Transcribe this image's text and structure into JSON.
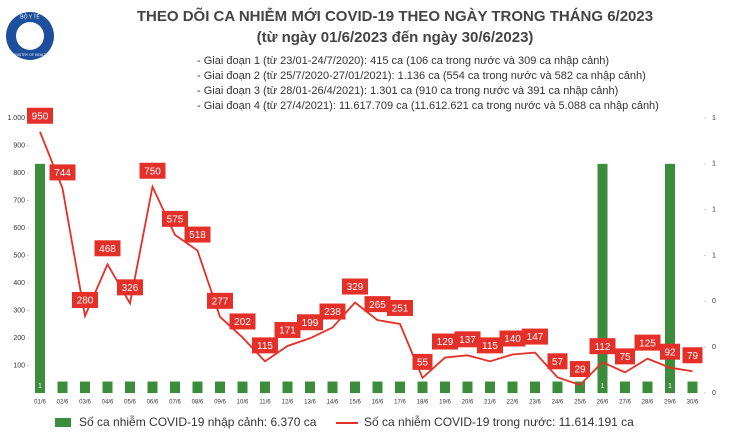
{
  "chart_data": {
    "type": "combo",
    "logo": {
      "top": "BỘ Y TẾ",
      "bottom": "MINISTRY OF HEALTH"
    },
    "title": "THEO DÕI CA NHIỄM MỚI COVID-19 THEO NGÀY TRONG THÁNG 6/2023",
    "subtitle": "(từ ngày 01/6/2023 đến ngày 30/6/2023)",
    "annotations": [
      "- Giai đoạn 1 (từ 23/01-24/7/2020): 415 ca (106 ca trong nước và 309 ca nhập cảnh)",
      "- Giai đoạn 2 (từ 25/7/2020-27/01/2021): 1.136 ca (554 ca trong nước và 582 ca nhập cảnh)",
      "- Giai đoạn 3 (từ 28/01-26/4/2021): 1.301 ca (910 ca trong nước và 391 ca nhập cảnh)",
      "- Giai đoạn 4 (từ 27/4/2021): 11.617.709 ca (11.612.621 ca trong nước và 5.088 ca nhập cảnh)"
    ],
    "categories": [
      "01/6",
      "02/6",
      "03/6",
      "04/6",
      "05/6",
      "06/6",
      "07/6",
      "08/6",
      "09/6",
      "10/6",
      "11/6",
      "12/6",
      "13/6",
      "14/6",
      "15/6",
      "16/6",
      "17/6",
      "18/6",
      "19/6",
      "20/6",
      "21/6",
      "22/6",
      "23/6",
      "24/6",
      "25/6",
      "26/6",
      "27/6",
      "28/6",
      "29/6",
      "30/6"
    ],
    "series": [
      {
        "name": "Số ca nhiễm COVID-19 nhập cảnh: 6.370 ca",
        "color": "#3b8c3b",
        "type": "bar",
        "axis": "y2",
        "values": [
          1,
          0.05,
          0.05,
          0.05,
          0.05,
          0.05,
          0.05,
          0.05,
          0.05,
          0.05,
          0.05,
          0.05,
          0.05,
          0.05,
          0.05,
          0.05,
          0.05,
          0.05,
          0.05,
          0.05,
          0.05,
          0.05,
          0.05,
          0.05,
          0.05,
          1,
          0.05,
          0.05,
          1,
          0.05
        ]
      },
      {
        "name": "Số ca nhiễm COVID-19 trong nước: 11.614.191 ca",
        "color": "#e5302a",
        "type": "line",
        "values": [
          950,
          744,
          280,
          468,
          326,
          750,
          575,
          518,
          277,
          202,
          115,
          171,
          199,
          238,
          329,
          265,
          251,
          55,
          129,
          137,
          115,
          140,
          147,
          57,
          29,
          112,
          75,
          125,
          92,
          79
        ]
      }
    ],
    "ylim": [
      0,
      1000
    ],
    "yticks": [
      100,
      200,
      300,
      400,
      500,
      600,
      700,
      800,
      900,
      {
        "value": 1000,
        "label": "1.000"
      }
    ],
    "y2lim": [
      0,
      1.2
    ],
    "y2ticks": [
      {
        "value": 0,
        "label": "0"
      },
      {
        "value": 0.2,
        "label": "0"
      },
      {
        "value": 0.4,
        "label": "0"
      },
      {
        "value": 0.6,
        "label": "1"
      },
      {
        "value": 0.8,
        "label": "1"
      },
      {
        "value": 1,
        "label": "1"
      },
      {
        "value": 1.2,
        "label": "1"
      }
    ]
  }
}
